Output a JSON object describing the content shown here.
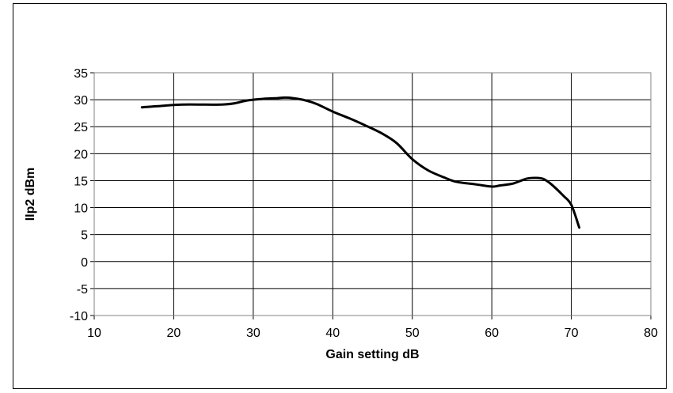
{
  "chart_data": {
    "type": "line",
    "title": "",
    "xlabel": "Gain setting dB",
    "ylabel": "IIp2 dBm",
    "xlim": [
      10,
      80
    ],
    "ylim": [
      -10,
      35
    ],
    "xticks": [
      10,
      20,
      30,
      40,
      50,
      60,
      70,
      80
    ],
    "yticks": [
      -10,
      -5,
      0,
      5,
      10,
      15,
      20,
      25,
      30,
      35
    ],
    "grid": true,
    "legend": "none",
    "line_color": "#000000",
    "series": [
      {
        "x": [
          16,
          18,
          21,
          24,
          26,
          27.5,
          29,
          30,
          31.5,
          33,
          34,
          35,
          36.5,
          38,
          40,
          42,
          44,
          46,
          48,
          50,
          52,
          54,
          55.5,
          58,
          60,
          61,
          62.5,
          63.5,
          64.5,
          65.5,
          66.5,
          67.5,
          69,
          70,
          71
        ],
        "values": [
          28.6,
          28.8,
          29.1,
          29.1,
          29.1,
          29.3,
          29.8,
          30.0,
          30.2,
          30.3,
          30.4,
          30.3,
          29.9,
          29.2,
          27.8,
          26.6,
          25.3,
          23.9,
          22.0,
          19.0,
          16.9,
          15.6,
          14.8,
          14.3,
          13.9,
          14.1,
          14.4,
          14.9,
          15.4,
          15.5,
          15.3,
          14.3,
          12.2,
          10.5,
          6.3
        ]
      }
    ]
  }
}
